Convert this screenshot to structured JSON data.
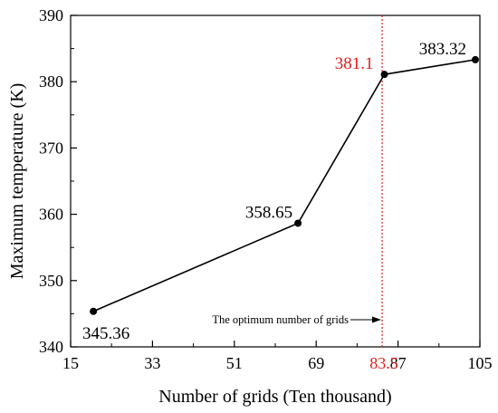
{
  "chart_data": {
    "type": "line",
    "xlabel": "Number of grids (Ten thousand)",
    "ylabel": "Maximum temperature (K)",
    "xlim": [
      15,
      105
    ],
    "ylim": [
      340,
      390
    ],
    "x_ticks": [
      15,
      33,
      51,
      69,
      87,
      105
    ],
    "y_ticks": [
      340,
      350,
      360,
      370,
      380,
      390
    ],
    "grid": false,
    "series": [
      {
        "x": [
          20,
          65,
          84,
          104
        ],
        "y": [
          345.36,
          358.65,
          381.1,
          383.32
        ],
        "labels": [
          "345.36",
          "358.65",
          "381.1",
          "383.32"
        ],
        "color": "#000000"
      }
    ],
    "optimum": {
      "x": 83.5,
      "label": "83.5",
      "color": "#e02020",
      "highlight_label": "381.1",
      "annotation": "The optimum number of grids"
    }
  }
}
